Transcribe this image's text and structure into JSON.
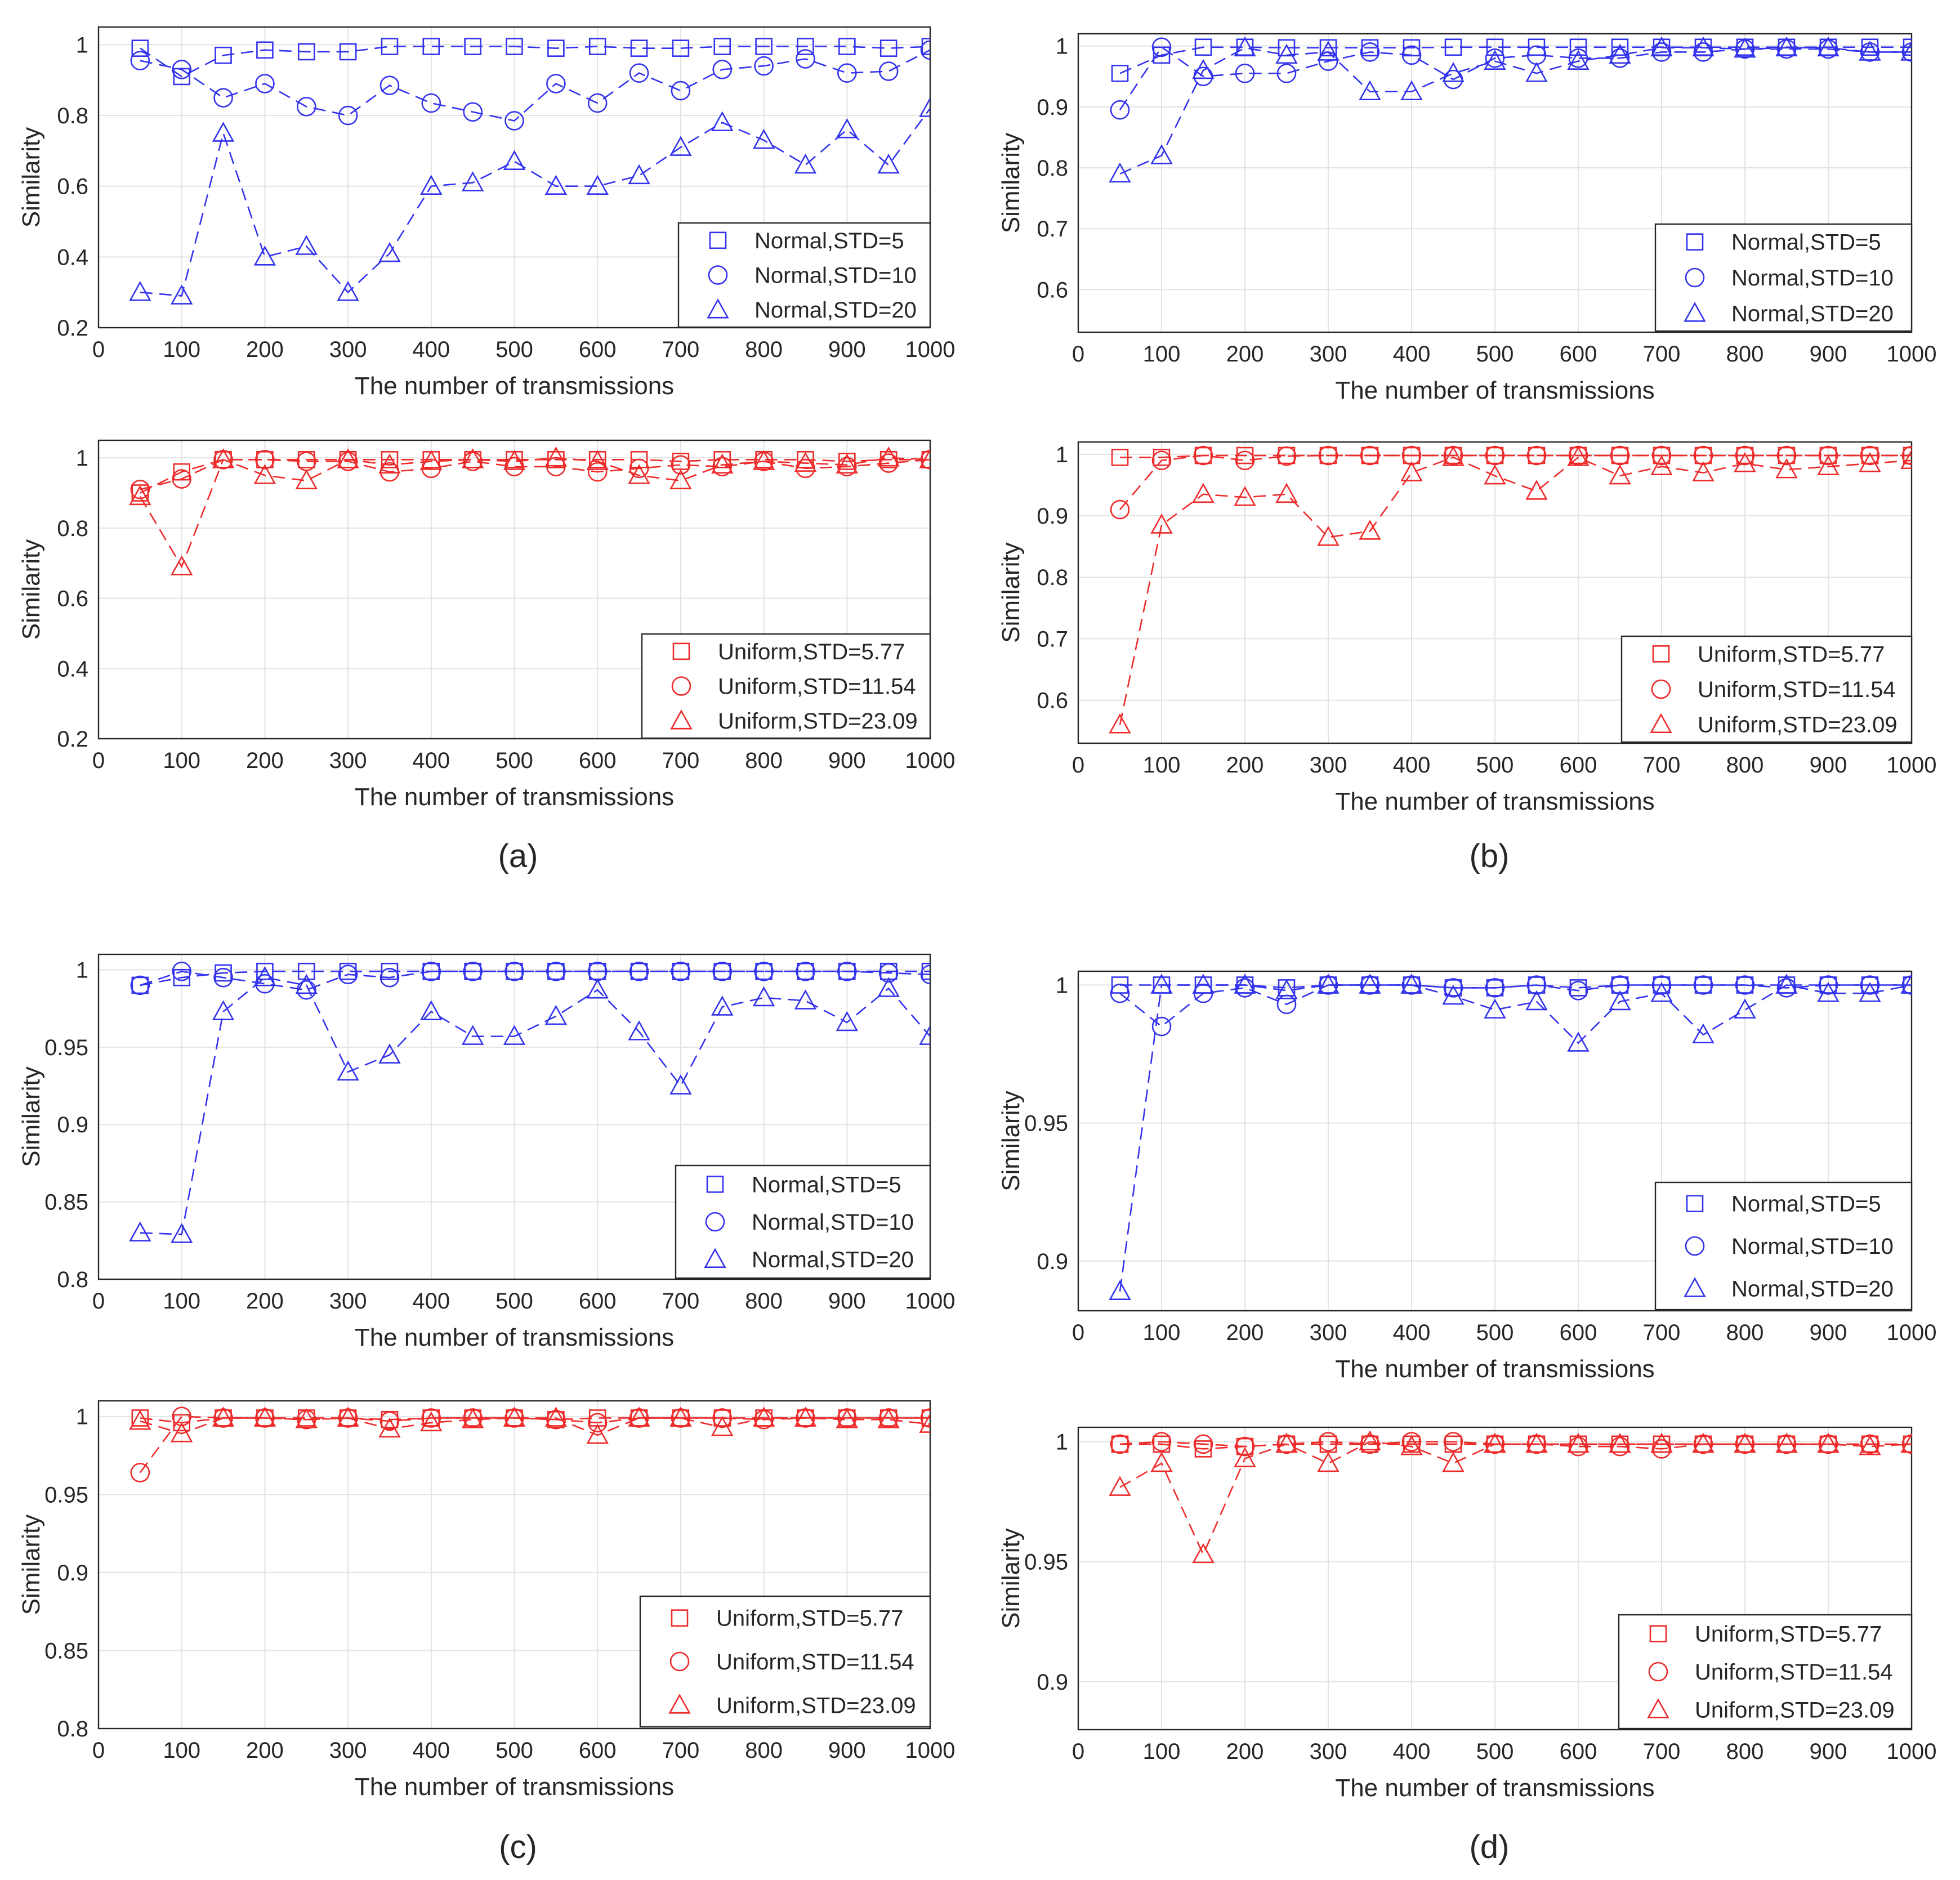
{
  "figure": {
    "panel_labels": [
      "(a)",
      "(b)",
      "(c)",
      "(d)"
    ]
  },
  "colors": {
    "normal": "#3333ee",
    "uniform": "#ee2b2b",
    "grid": "#e3e3e3",
    "axis": "#262626"
  },
  "chart_data": [
    {
      "id": "a-normal",
      "panel": "(a)",
      "type": "line",
      "xlabel": "The number of transmissions",
      "ylabel": "Similarity",
      "xlim": [
        0,
        1000
      ],
      "ylim": [
        0.2,
        1.05
      ],
      "xticks": [
        "0",
        "100",
        "200",
        "300",
        "400",
        "500",
        "600",
        "700",
        "800",
        "900",
        "1000"
      ],
      "yticks": [
        "0.2",
        "0.4",
        "0.6",
        "0.8",
        "1"
      ],
      "legend": "bottom-right",
      "x": [
        50,
        100,
        150,
        200,
        250,
        300,
        350,
        400,
        450,
        500,
        550,
        600,
        650,
        700,
        750,
        800,
        850,
        900,
        950,
        1000
      ],
      "series": [
        {
          "name": "Normal,STD=5",
          "marker": "square",
          "values": [
            0.99,
            0.91,
            0.97,
            0.985,
            0.98,
            0.98,
            0.995,
            0.995,
            0.995,
            0.995,
            0.99,
            0.995,
            0.99,
            0.99,
            0.995,
            0.995,
            0.995,
            0.995,
            0.99,
            0.995
          ]
        },
        {
          "name": "Normal,STD=10",
          "marker": "circle",
          "values": [
            0.955,
            0.93,
            0.85,
            0.89,
            0.825,
            0.8,
            0.885,
            0.835,
            0.81,
            0.785,
            0.89,
            0.835,
            0.92,
            0.87,
            0.93,
            0.94,
            0.96,
            0.92,
            0.925,
            0.985
          ]
        },
        {
          "name": "Normal,STD=20",
          "marker": "triangle",
          "values": [
            0.3,
            0.29,
            0.75,
            0.4,
            0.43,
            0.3,
            0.41,
            0.6,
            0.61,
            0.67,
            0.6,
            0.6,
            0.63,
            0.71,
            0.78,
            0.73,
            0.66,
            0.76,
            0.66,
            0.82
          ]
        }
      ]
    },
    {
      "id": "a-uniform",
      "panel": "(a)",
      "type": "line",
      "xlabel": "The number of transmissions",
      "ylabel": "Similarity",
      "xlim": [
        0,
        1000
      ],
      "ylim": [
        0.2,
        1.05
      ],
      "xticks": [
        "0",
        "100",
        "200",
        "300",
        "400",
        "500",
        "600",
        "700",
        "800",
        "900",
        "1000"
      ],
      "yticks": [
        "0.2",
        "0.4",
        "0.6",
        "0.8",
        "1"
      ],
      "legend": "bottom-right",
      "x": [
        50,
        100,
        150,
        200,
        250,
        300,
        350,
        400,
        450,
        500,
        550,
        600,
        650,
        700,
        750,
        800,
        850,
        900,
        950,
        1000
      ],
      "series": [
        {
          "name": "Uniform,STD=5.77",
          "marker": "square",
          "values": [
            0.9,
            0.96,
            0.995,
            0.995,
            0.995,
            0.995,
            0.995,
            0.995,
            0.995,
            0.995,
            0.995,
            0.995,
            0.995,
            0.99,
            0.995,
            0.995,
            0.995,
            0.99,
            0.995,
            0.995
          ]
        },
        {
          "name": "Uniform,STD=11.54",
          "marker": "circle",
          "values": [
            0.91,
            0.94,
            0.995,
            0.995,
            0.99,
            0.99,
            0.96,
            0.97,
            0.99,
            0.975,
            0.975,
            0.96,
            0.97,
            0.98,
            0.975,
            0.99,
            0.97,
            0.975,
            0.985,
            0.995
          ]
        },
        {
          "name": "Uniform,STD=23.09",
          "marker": "triangle",
          "values": [
            0.89,
            0.69,
            0.995,
            0.95,
            0.935,
            0.995,
            0.98,
            0.99,
            0.995,
            0.99,
            1.0,
            0.99,
            0.95,
            0.935,
            0.98,
            0.99,
            0.985,
            0.98,
            1.0,
            0.995
          ]
        }
      ]
    },
    {
      "id": "b-normal",
      "panel": "(b)",
      "type": "line",
      "xlabel": "The number of transmissions",
      "ylabel": "Similarity",
      "xlim": [
        0,
        1000
      ],
      "ylim": [
        0.53,
        1.02
      ],
      "xticks": [
        "0",
        "100",
        "200",
        "300",
        "400",
        "500",
        "600",
        "700",
        "800",
        "900",
        "1000"
      ],
      "yticks": [
        "0.6",
        "0.7",
        "0.8",
        "0.9",
        "1"
      ],
      "legend": "bottom-right",
      "x": [
        50,
        100,
        150,
        200,
        250,
        300,
        350,
        400,
        450,
        500,
        550,
        600,
        650,
        700,
        750,
        800,
        850,
        900,
        950,
        1000
      ],
      "series": [
        {
          "name": "Normal,STD=5",
          "marker": "square",
          "values": [
            0.955,
            0.985,
            0.998,
            0.998,
            0.997,
            0.997,
            0.997,
            0.997,
            0.998,
            0.998,
            0.998,
            0.998,
            0.998,
            0.998,
            0.998,
            0.998,
            0.998,
            0.998,
            0.998,
            0.998
          ]
        },
        {
          "name": "Normal,STD=10",
          "marker": "circle",
          "values": [
            0.895,
            0.998,
            0.95,
            0.955,
            0.955,
            0.975,
            0.99,
            0.985,
            0.945,
            0.98,
            0.985,
            0.98,
            0.98,
            0.99,
            0.99,
            0.995,
            0.995,
            0.995,
            0.99,
            0.99
          ]
        },
        {
          "name": "Normal,STD=20",
          "marker": "triangle",
          "values": [
            0.79,
            0.82,
            0.96,
            0.997,
            0.985,
            0.99,
            0.925,
            0.925,
            0.955,
            0.975,
            0.955,
            0.975,
            0.985,
            0.997,
            0.997,
            0.995,
            0.997,
            0.997,
            0.99,
            0.99
          ]
        }
      ]
    },
    {
      "id": "b-uniform",
      "panel": "(b)",
      "type": "line",
      "xlabel": "The number of transmissions",
      "ylabel": "Similarity",
      "xlim": [
        0,
        1000
      ],
      "ylim": [
        0.53,
        1.02
      ],
      "xticks": [
        "0",
        "100",
        "200",
        "300",
        "400",
        "500",
        "600",
        "700",
        "800",
        "900",
        "1000"
      ],
      "yticks": [
        "0.6",
        "0.7",
        "0.8",
        "0.9",
        "1"
      ],
      "legend": "bottom-right",
      "x": [
        50,
        100,
        150,
        200,
        250,
        300,
        350,
        400,
        450,
        500,
        550,
        600,
        650,
        700,
        750,
        800,
        850,
        900,
        950,
        1000
      ],
      "series": [
        {
          "name": "Uniform,STD=5.77",
          "marker": "square",
          "values": [
            0.995,
            0.995,
            0.998,
            0.998,
            0.998,
            0.998,
            0.998,
            0.998,
            0.998,
            0.998,
            0.998,
            0.998,
            0.998,
            0.998,
            0.998,
            0.998,
            0.998,
            0.998,
            0.998,
            0.998
          ]
        },
        {
          "name": "Uniform,STD=11.54",
          "marker": "circle",
          "values": [
            0.91,
            0.99,
            0.998,
            0.99,
            0.997,
            0.998,
            0.998,
            0.998,
            0.998,
            0.998,
            0.998,
            0.998,
            0.998,
            0.998,
            0.998,
            0.998,
            0.998,
            0.998,
            0.998,
            0.998
          ]
        },
        {
          "name": "Uniform,STD=23.09",
          "marker": "triangle",
          "values": [
            0.56,
            0.885,
            0.935,
            0.93,
            0.935,
            0.865,
            0.875,
            0.97,
            0.995,
            0.965,
            0.94,
            0.995,
            0.965,
            0.98,
            0.97,
            0.985,
            0.975,
            0.98,
            0.985,
            0.99
          ]
        }
      ]
    },
    {
      "id": "c-normal",
      "panel": "(c)",
      "type": "line",
      "xlabel": "The number of transmissions",
      "ylabel": "Similarity",
      "xlim": [
        0,
        1000
      ],
      "ylim": [
        0.8,
        1.01
      ],
      "xticks": [
        "0",
        "100",
        "200",
        "300",
        "400",
        "500",
        "600",
        "700",
        "800",
        "900",
        "1000"
      ],
      "yticks": [
        "0.8",
        "0.85",
        "0.9",
        "0.95",
        "1"
      ],
      "legend": "bottom-right",
      "x": [
        50,
        100,
        150,
        200,
        250,
        300,
        350,
        400,
        450,
        500,
        550,
        600,
        650,
        700,
        750,
        800,
        850,
        900,
        950,
        1000
      ],
      "series": [
        {
          "name": "Normal,STD=5",
          "marker": "square",
          "values": [
            0.99,
            0.995,
            0.998,
            0.999,
            0.999,
            0.999,
            0.999,
            0.999,
            0.999,
            0.999,
            0.999,
            0.999,
            0.999,
            0.999,
            0.999,
            0.999,
            0.999,
            0.999,
            0.999,
            0.999
          ]
        },
        {
          "name": "Normal,STD=10",
          "marker": "circle",
          "values": [
            0.99,
            0.999,
            0.995,
            0.991,
            0.987,
            0.997,
            0.995,
            0.999,
            0.999,
            0.999,
            0.999,
            0.999,
            0.999,
            0.999,
            0.999,
            0.999,
            0.999,
            0.999,
            0.998,
            0.997
          ]
        },
        {
          "name": "Normal,STD=20",
          "marker": "triangle",
          "values": [
            0.83,
            0.829,
            0.973,
            0.995,
            0.99,
            0.934,
            0.945,
            0.973,
            0.957,
            0.957,
            0.97,
            0.987,
            0.96,
            0.925,
            0.976,
            0.982,
            0.98,
            0.966,
            0.988,
            0.957
          ]
        }
      ]
    },
    {
      "id": "c-uniform",
      "panel": "(c)",
      "type": "line",
      "xlabel": "The number of transmissions",
      "ylabel": "Similarity",
      "xlim": [
        0,
        1000
      ],
      "ylim": [
        0.8,
        1.01
      ],
      "xticks": [
        "0",
        "100",
        "200",
        "300",
        "400",
        "500",
        "600",
        "700",
        "800",
        "900",
        "1000"
      ],
      "yticks": [
        "0.8",
        "0.85",
        "0.9",
        "0.95",
        "1"
      ],
      "legend": "bottom-right",
      "x": [
        50,
        100,
        150,
        200,
        250,
        300,
        350,
        400,
        450,
        500,
        550,
        600,
        650,
        700,
        750,
        800,
        850,
        900,
        950,
        1000
      ],
      "series": [
        {
          "name": "Uniform,STD=5.77",
          "marker": "square",
          "values": [
            0.999,
            0.996,
            0.999,
            0.999,
            0.999,
            0.999,
            0.998,
            0.999,
            0.999,
            0.999,
            0.998,
            0.999,
            0.999,
            0.999,
            0.999,
            0.999,
            0.999,
            0.999,
            0.999,
            0.999
          ]
        },
        {
          "name": "Uniform,STD=11.54",
          "marker": "circle",
          "values": [
            0.964,
            1.0,
            0.999,
            0.999,
            0.998,
            0.999,
            0.997,
            0.999,
            0.999,
            0.999,
            0.998,
            0.996,
            0.999,
            0.999,
            0.999,
            0.998,
            0.999,
            0.999,
            0.999,
            0.999
          ]
        },
        {
          "name": "Uniform,STD=23.09",
          "marker": "triangle",
          "values": [
            0.997,
            0.989,
            0.999,
            0.999,
            0.998,
            0.999,
            0.992,
            0.996,
            0.998,
            0.999,
            0.999,
            0.988,
            0.999,
            0.999,
            0.993,
            0.999,
            0.999,
            0.998,
            0.998,
            0.995
          ]
        }
      ]
    },
    {
      "id": "d-normal",
      "panel": "(d)",
      "type": "line",
      "xlabel": "The number of transmissions",
      "ylabel": "Similarity",
      "xlim": [
        0,
        1000
      ],
      "ylim": [
        0.882,
        1.005
      ],
      "xticks": [
        "0",
        "100",
        "200",
        "300",
        "400",
        "500",
        "600",
        "700",
        "800",
        "900",
        "1000"
      ],
      "yticks": [
        "0.9",
        "0.95",
        "1"
      ],
      "legend": "bottom-right",
      "x": [
        50,
        100,
        150,
        200,
        250,
        300,
        350,
        400,
        450,
        500,
        550,
        600,
        650,
        700,
        750,
        800,
        850,
        900,
        950,
        1000
      ],
      "series": [
        {
          "name": "Normal,STD=5",
          "marker": "square",
          "values": [
            1.0,
            1.0,
            1.0,
            1.0,
            0.999,
            1.0,
            1.0,
            1.0,
            0.999,
            0.999,
            1.0,
            0.999,
            1.0,
            1.0,
            1.0,
            1.0,
            1.0,
            1.0,
            1.0,
            1.0
          ]
        },
        {
          "name": "Normal,STD=10",
          "marker": "circle",
          "values": [
            0.997,
            0.985,
            0.997,
            0.999,
            0.993,
            1.0,
            1.0,
            1.0,
            0.999,
            0.999,
            1.0,
            0.998,
            1.0,
            1.0,
            1.0,
            1.0,
            0.999,
            1.0,
            1.0,
            1.0
          ]
        },
        {
          "name": "Normal,STD=20",
          "marker": "triangle",
          "values": [
            0.889,
            1.0,
            1.0,
            1.0,
            0.998,
            1.0,
            1.0,
            1.0,
            0.996,
            0.991,
            0.994,
            0.979,
            0.994,
            0.997,
            0.982,
            0.991,
            1.0,
            0.997,
            0.997,
            1.0
          ]
        }
      ]
    },
    {
      "id": "d-uniform",
      "panel": "(d)",
      "type": "line",
      "xlabel": "The number of transmissions",
      "ylabel": "Similarity",
      "xlim": [
        0,
        1000
      ],
      "ylim": [
        0.88,
        1.006
      ],
      "xticks": [
        "0",
        "100",
        "200",
        "300",
        "400",
        "500",
        "600",
        "700",
        "800",
        "900",
        "1000"
      ],
      "yticks": [
        "0.9",
        "0.95",
        "1"
      ],
      "legend": "bottom-right",
      "x": [
        50,
        100,
        150,
        200,
        250,
        300,
        350,
        400,
        450,
        500,
        550,
        600,
        650,
        700,
        750,
        800,
        850,
        900,
        950,
        1000
      ],
      "series": [
        {
          "name": "Uniform,STD=5.77",
          "marker": "square",
          "values": [
            0.999,
            0.999,
            0.997,
            0.998,
            0.999,
            0.999,
            0.999,
            0.999,
            0.999,
            0.999,
            0.999,
            0.999,
            0.999,
            0.999,
            0.999,
            0.999,
            0.999,
            0.999,
            0.999,
            0.999
          ]
        },
        {
          "name": "Uniform,STD=11.54",
          "marker": "circle",
          "values": [
            0.999,
            1.0,
            0.999,
            0.998,
            0.999,
            1.0,
            0.999,
            1.0,
            1.0,
            0.999,
            0.999,
            0.998,
            0.998,
            0.997,
            0.999,
            0.999,
            0.999,
            0.999,
            0.999,
            0.999
          ]
        },
        {
          "name": "Uniform,STD=23.09",
          "marker": "triangle",
          "values": [
            0.981,
            0.991,
            0.953,
            0.993,
            0.999,
            0.991,
            1.0,
            0.998,
            0.991,
            0.999,
            0.999,
            0.999,
            0.999,
            0.999,
            0.999,
            0.999,
            0.999,
            0.999,
            0.998,
            0.999
          ]
        }
      ]
    }
  ]
}
